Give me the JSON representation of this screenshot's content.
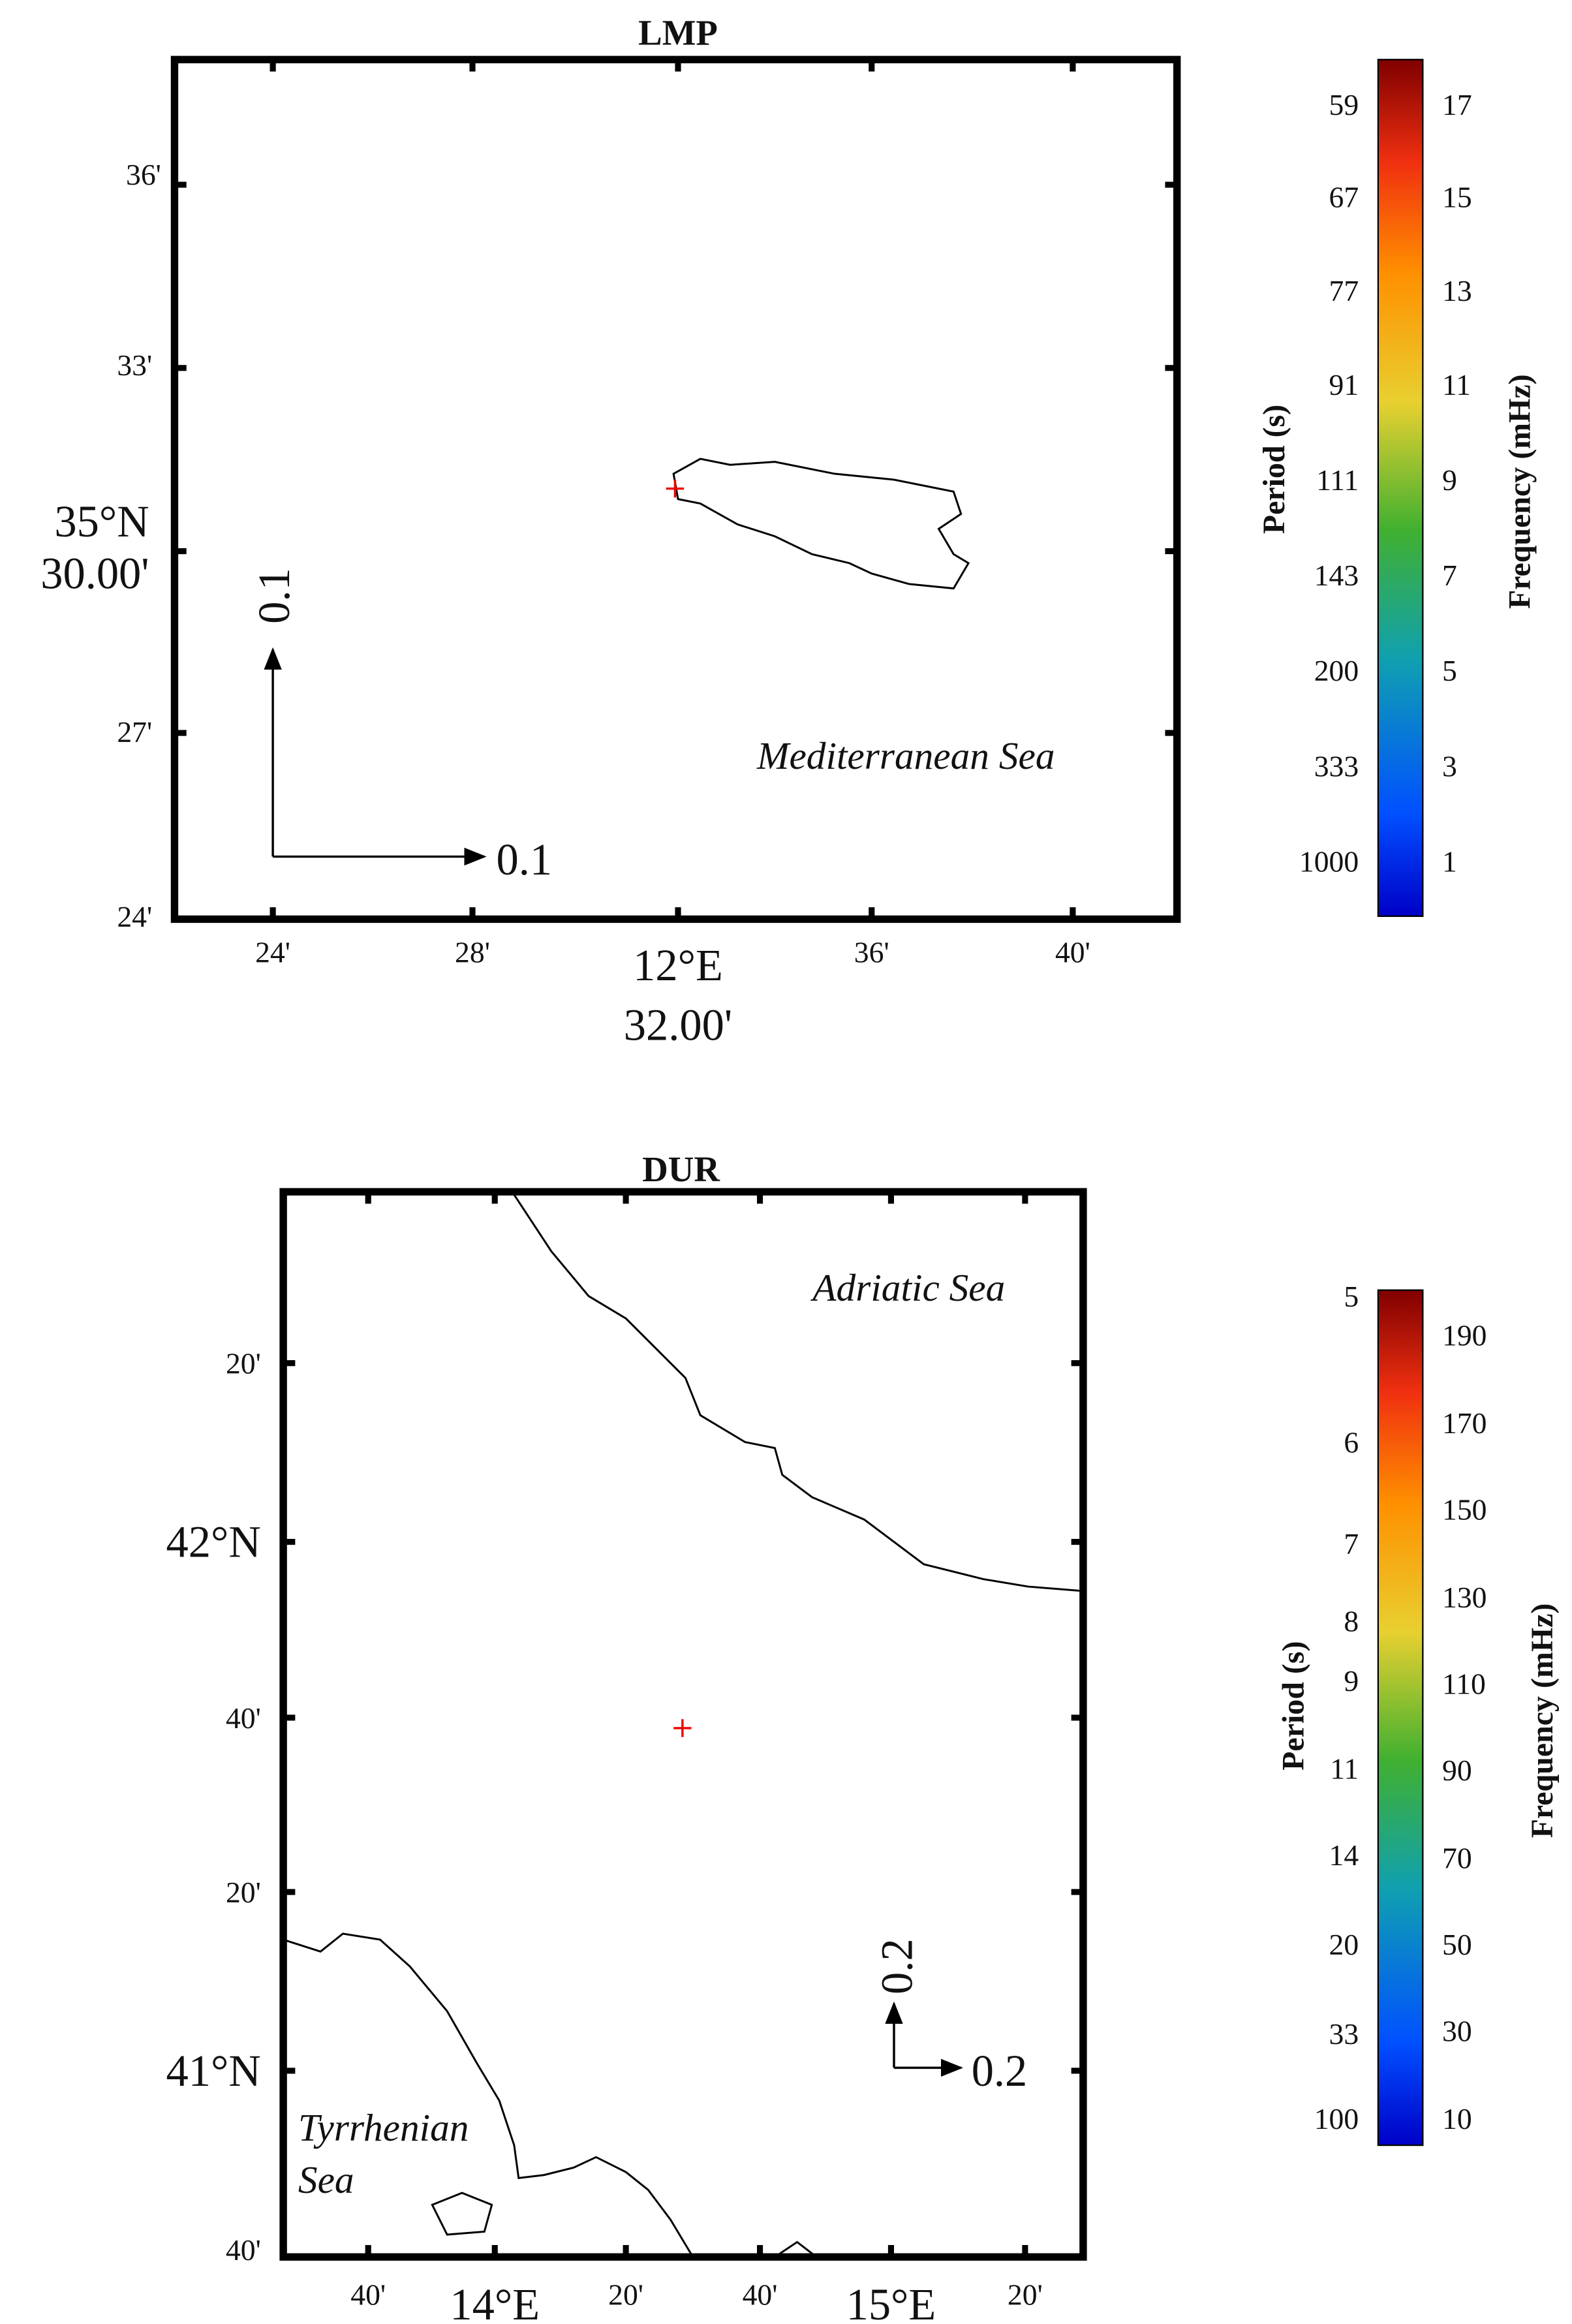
{
  "panels": [
    {
      "title": "LMP",
      "y_labels": [
        "36'",
        "33'",
        "35°N",
        "30.00'",
        "27'",
        "24'"
      ],
      "x_labels": [
        "24'",
        "28'",
        "12°E",
        "32.00'",
        "36'",
        "40'"
      ],
      "sea_label": "Mediterranean Sea",
      "scale_labels": [
        "0.1",
        "0.1"
      ],
      "colorbar": {
        "period_label": "Period (s)",
        "frequency_label": "Frequency (mHz)",
        "period_ticks": [
          "59",
          "67",
          "77",
          "91",
          "111",
          "143",
          "200",
          "333",
          "1000"
        ],
        "frequency_ticks": [
          "17",
          "15",
          "13",
          "11",
          "9",
          "7",
          "5",
          "3",
          "1"
        ]
      }
    },
    {
      "title": "DUR",
      "y_labels": [
        "20'",
        "42°N",
        "40'",
        "20'",
        "41°N",
        "40'"
      ],
      "x_labels": [
        "40'",
        "14°E",
        "20'",
        "40'",
        "15°E",
        "20'"
      ],
      "sea_labels": [
        "Adriatic Sea",
        "Tyrrhenian",
        "Sea"
      ],
      "scale_labels": [
        "0.2",
        "0.2"
      ],
      "colorbar": {
        "period_label": "Period (s)",
        "frequency_label": "Frequency (mHz)",
        "period_ticks": [
          "5",
          "6",
          "7",
          "8",
          "9",
          "11",
          "14",
          "20",
          "33",
          "100"
        ],
        "frequency_ticks": [
          "190",
          "170",
          "150",
          "130",
          "110",
          "90",
          "70",
          "50",
          "30",
          "10"
        ]
      }
    }
  ]
}
